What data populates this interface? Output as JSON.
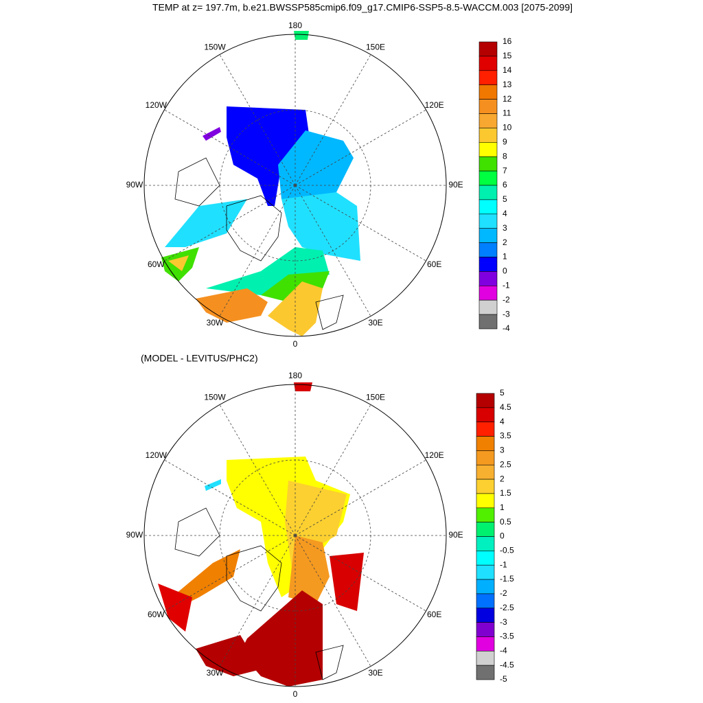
{
  "title": "TEMP at z= 197.7m, b.e21.BWSSP585cmip6.f09_g17.CMIP6-SSP5-8.5-WACCM.003 [2075-2099]",
  "maps": [
    {
      "lon_labels": [
        "180",
        "150E",
        "120E",
        "90E",
        "60E",
        "30E",
        "0",
        "30W",
        "60W",
        "90W",
        "120W",
        "150W"
      ],
      "colorbar": {
        "labels": [
          16,
          15,
          14,
          13,
          12,
          11,
          10,
          9,
          8,
          7,
          6,
          5,
          4,
          3,
          2,
          1,
          0,
          -1,
          -2,
          -3,
          -4
        ],
        "colors": [
          "#b40000",
          "#e00000",
          "#ff2000",
          "#f07800",
          "#f59020",
          "#f8a830",
          "#fcc830",
          "#ffff00",
          "#40e000",
          "#00ff40",
          "#00f0b0",
          "#00ffff",
          "#20e0ff",
          "#00b8ff",
          "#0080ff",
          "#0000ff",
          "#8000e0",
          "#e000e0",
          "#d0d0d0",
          "#707070"
        ]
      }
    },
    {
      "subtitle": "(MODEL - LEVITUS/PHC2)",
      "lon_labels": [
        "180",
        "150E",
        "120E",
        "90E",
        "60E",
        "30E",
        "0",
        "30W",
        "60W",
        "90W",
        "120W",
        "150W"
      ],
      "colorbar": {
        "labels": [
          5,
          4.5,
          4,
          3.5,
          3,
          2.5,
          2,
          1.5,
          1,
          0.5,
          0,
          -0.5,
          -1,
          -1.5,
          -2,
          -2.5,
          -3,
          -3.5,
          -4,
          -4.5,
          -5
        ],
        "colors": [
          "#b40000",
          "#d80000",
          "#ff2000",
          "#f08000",
          "#f59a20",
          "#f8b030",
          "#fcd030",
          "#ffff00",
          "#50f000",
          "#00f070",
          "#00f0c0",
          "#00ffff",
          "#20e0ff",
          "#00b0ff",
          "#0070ff",
          "#0000e0",
          "#8000d0",
          "#e000e0",
          "#d0d0d0",
          "#707070"
        ]
      }
    }
  ]
}
